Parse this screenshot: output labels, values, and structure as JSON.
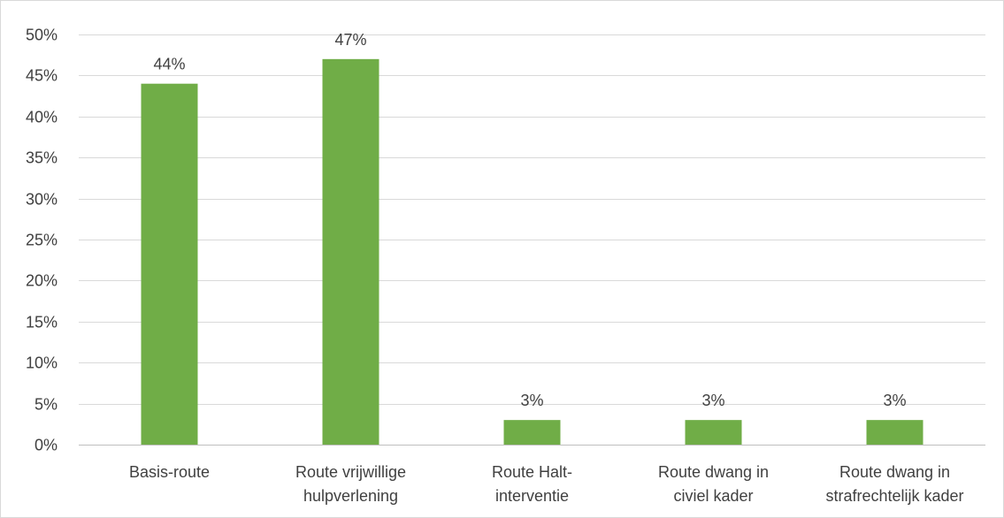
{
  "chart_data": {
    "type": "bar",
    "categories": [
      [
        "Basis-route"
      ],
      [
        "Route vrijwillige",
        "hulpverlening"
      ],
      [
        "Route Halt-",
        "interventie"
      ],
      [
        "Route dwang in",
        "civiel kader"
      ],
      [
        "Route dwang in",
        "strafrechtelijk kader"
      ]
    ],
    "values": [
      44,
      47,
      3,
      3,
      3
    ],
    "data_labels": [
      "44%",
      "47%",
      "3%",
      "3%",
      "3%"
    ],
    "y_ticks": [
      "0%",
      "5%",
      "10%",
      "15%",
      "20%",
      "25%",
      "30%",
      "35%",
      "40%",
      "45%",
      "50%"
    ],
    "ylim": [
      0,
      50
    ],
    "grid": true,
    "bar_color": "#70ad47"
  }
}
